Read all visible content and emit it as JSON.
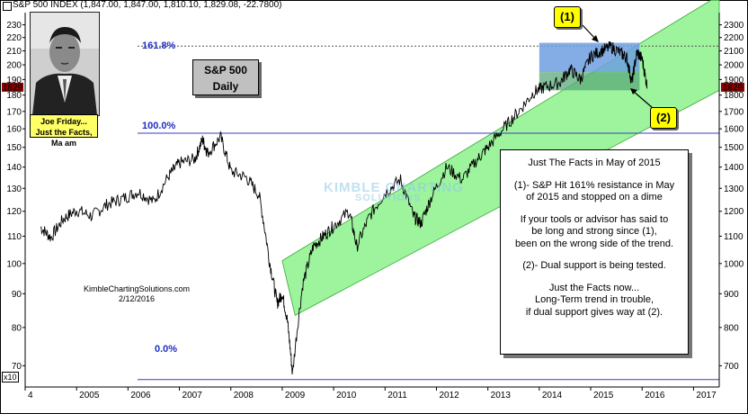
{
  "header": "S&P 500 INDEX (1,847.00, 1,847.00, 1,810.10, 1,829.08, -22.7800)",
  "chart_data": {
    "type": "line",
    "series": [
      {
        "name": "S&P 500 INDEX",
        "x": [
          2004.3,
          2004.5,
          2004.75,
          2005.0,
          2005.3,
          2005.6,
          2005.9,
          2006.2,
          2006.5,
          2006.8,
          2007.0,
          2007.3,
          2007.45,
          2007.55,
          2007.8,
          2008.0,
          2008.3,
          2008.55,
          2008.75,
          2008.9,
          2009.0,
          2009.1,
          2009.2,
          2009.4,
          2009.6,
          2009.8,
          2010.0,
          2010.3,
          2010.45,
          2010.7,
          2011.0,
          2011.3,
          2011.55,
          2011.7,
          2011.9,
          2012.2,
          2012.5,
          2012.8,
          2013.0,
          2013.3,
          2013.6,
          2013.9,
          2014.1,
          2014.4,
          2014.6,
          2014.8,
          2015.0,
          2015.2,
          2015.4,
          2015.6,
          2015.7,
          2015.8,
          2015.9,
          2016.0,
          2016.1
        ],
        "values": [
          1135,
          1095,
          1170,
          1205,
          1180,
          1230,
          1255,
          1285,
          1240,
          1360,
          1420,
          1440,
          1540,
          1470,
          1555,
          1380,
          1350,
          1270,
          1010,
          870,
          900,
          820,
          680,
          930,
          1060,
          1100,
          1140,
          1200,
          1060,
          1180,
          1280,
          1340,
          1180,
          1150,
          1260,
          1400,
          1340,
          1440,
          1500,
          1600,
          1700,
          1820,
          1850,
          1880,
          1970,
          1900,
          2060,
          2100,
          2130,
          2080,
          2050,
          1880,
          2090,
          2040,
          1850
        ]
      }
    ],
    "y_ticks": [
      70,
      80,
      90,
      100,
      110,
      120,
      130,
      140,
      150,
      160,
      170,
      180,
      190,
      200,
      210,
      220,
      230
    ],
    "y_ticks_right": [
      700,
      800,
      900,
      1000,
      1100,
      1200,
      1300,
      1400,
      1500,
      1600,
      1700,
      1800,
      1900,
      2000,
      2100,
      2200,
      2300
    ],
    "x_ticks": [
      "4",
      "2005",
      "2006",
      "2007",
      "2008",
      "2009",
      "2010",
      "2011",
      "2012",
      "2013",
      "2014",
      "2015",
      "2016",
      "2017"
    ],
    "yscale": "log",
    "last_value_label": "1829",
    "x10_label": "x10",
    "fib_levels": [
      {
        "label": "161.8%",
        "value": 2135
      },
      {
        "label": "100.0%",
        "value": 1576
      },
      {
        "label": "0.0%",
        "value": 667
      }
    ]
  },
  "annotations": {
    "title_box": [
      "S&P 500",
      "Daily"
    ],
    "photo_caption": [
      "Joe Friday...",
      "Just the Facts, Ma am"
    ],
    "callout_1": "(1)",
    "callout_2": "(2)",
    "credit": [
      "KimbleChartingSolutions.com",
      "2/12/2016"
    ],
    "watermark": [
      "KIMBLE CHARTING",
      "SOLUTIONS"
    ],
    "textbox": [
      "Just The Facts in May of 2015",
      "(1)- S&P Hit 161% resistance in May",
      "of 2015 and stopped on a dime",
      "If your tools or advisor has said to",
      "be long and strong since (1),",
      "been on the wrong side of the trend.",
      "(2)- Dual support is being tested.",
      "Just the Facts now...",
      "Long-Term trend in trouble,",
      "if dual support gives way at (2)."
    ]
  },
  "colors": {
    "channel": "#7cf07c",
    "resistance_box": "#6f9fe0",
    "support_box": "#5aaa7a",
    "fib_line": "#3b3bc4",
    "callout": "#ffff00"
  }
}
